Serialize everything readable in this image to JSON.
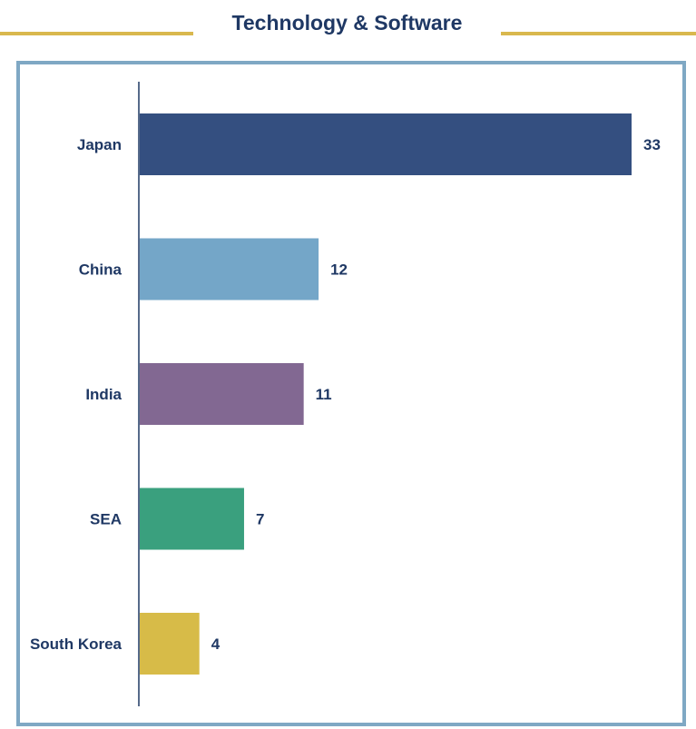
{
  "title": "Technology & Software",
  "colors": {
    "title": "#1f3864",
    "rule": "#d9b84e",
    "frame": "#7fa8c4",
    "axis": "#1f3864"
  },
  "chart_data": {
    "type": "bar",
    "orientation": "horizontal",
    "categories": [
      "Japan",
      "China",
      "India",
      "SEA",
      "South Korea"
    ],
    "values": [
      33,
      12,
      11,
      7,
      4
    ],
    "colors": [
      "#344f80",
      "#74a6c8",
      "#826892",
      "#3aa07e",
      "#d7bb48"
    ],
    "title": "Technology & Software",
    "xlabel": "",
    "ylabel": "",
    "xlim": [
      0,
      33
    ],
    "grid": false,
    "legend": "none",
    "data_labels": true
  }
}
